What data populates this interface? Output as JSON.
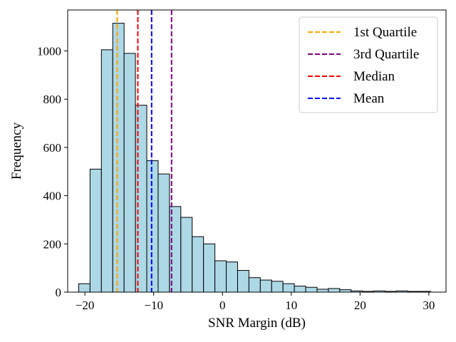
{
  "chart_data": {
    "type": "histogram",
    "title": "",
    "xlabel": "SNR Margin (dB)",
    "ylabel": "Frequency",
    "xlim": [
      -22.5,
      32.5
    ],
    "ylim": [
      0,
      1170
    ],
    "xticks": [
      -20,
      -10,
      0,
      10,
      20,
      30
    ],
    "yticks": [
      0,
      200,
      400,
      600,
      800,
      1000
    ],
    "bin_width": 1.65,
    "bin_edges_start": -20.9,
    "bar_color": "#add8e6",
    "edge_color": "#000000",
    "counts": [
      35,
      510,
      1005,
      1115,
      990,
      775,
      545,
      490,
      355,
      310,
      230,
      200,
      130,
      125,
      90,
      60,
      50,
      45,
      35,
      25,
      20,
      12,
      15,
      10,
      5,
      3,
      5,
      3,
      5,
      3,
      3
    ],
    "vlines": [
      {
        "name": "1st Quartile",
        "x": -15.3,
        "color": "#ffa500"
      },
      {
        "name": "3rd Quartile",
        "x": -7.4,
        "color": "#800080"
      },
      {
        "name": "Median",
        "x": -12.3,
        "color": "#ff0000"
      },
      {
        "name": "Mean",
        "x": -10.3,
        "color": "#0000ff"
      }
    ],
    "legend_position": "top-right",
    "grid": false
  }
}
